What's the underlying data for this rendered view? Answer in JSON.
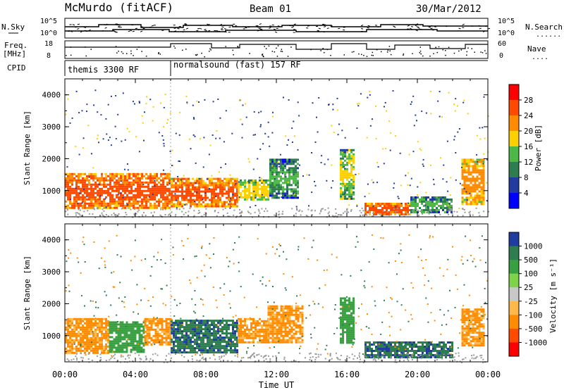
{
  "header": {
    "station": "McMurdo (fitACF)",
    "beam": "Beam 01",
    "date": "30/Mar/2012"
  },
  "top_panels": {
    "nsky_label": "N.Sky",
    "nsearch_label": "N.Search",
    "nsearch_dots": "......",
    "freq_label_line1": "Freq.",
    "freq_label_line2": "[MHz]",
    "nave_label": "Nave",
    "nave_dots": "....",
    "cpid_label": "CPID",
    "left_ticks_top": [
      "10^5",
      "10^0"
    ],
    "right_ticks_top": [
      "10^5",
      "10^0"
    ],
    "left_ticks_freq": [
      "18",
      "8"
    ],
    "right_ticks_nave": [
      "60",
      "0"
    ],
    "cpid_segments": [
      {
        "name": "themis 3300 RF",
        "start_hour": 0,
        "end_hour": 6
      },
      {
        "name": "normalsound (fast) 157 RF",
        "start_hour": 6,
        "end_hour": 24
      }
    ]
  },
  "colorbars": {
    "power": {
      "title": "Power [dB]",
      "ticks": [
        "28",
        "24",
        "20",
        "16",
        "12",
        "8",
        "4"
      ],
      "colors": [
        "#ff0000",
        "#ff4a00",
        "#ff8c00",
        "#ffd000",
        "#4db848",
        "#2e7d4f",
        "#1f3c9e",
        "#0000ff"
      ]
    },
    "velocity": {
      "title": "Velocity [m s⁻¹]",
      "ticks": [
        "1000",
        "500",
        "100",
        "25",
        "-25",
        "-100",
        "-500",
        "-1000"
      ],
      "colors": [
        "#1f3c9e",
        "#2e7d4f",
        "#38a040",
        "#7fd34b",
        "#c8c8c8",
        "#ffb84a",
        "#ff8c00",
        "#ff4a00",
        "#ff0000"
      ]
    }
  },
  "chart_data": [
    {
      "type": "heatmap",
      "title": "Power",
      "xlabel": "Time UT",
      "ylabel": "Slant Range [km]",
      "xlim": [
        0,
        24
      ],
      "ylim": [
        180,
        4500
      ],
      "x_ticks": [
        "00:00",
        "04:00",
        "08:00",
        "12:00",
        "16:00",
        "20:00",
        "00:00"
      ],
      "y_ticks": [
        "1000",
        "2000",
        "3000",
        "4000"
      ],
      "colorbar_label": "Power [dB]",
      "colorbar_ticks": [
        28,
        24,
        20,
        16,
        12,
        8,
        4
      ],
      "regions": [
        {
          "t0": 0.0,
          "t1": 6.0,
          "r0": 450,
          "r1": 1550,
          "value": 26
        },
        {
          "t0": 6.0,
          "t1": 9.8,
          "r0": 500,
          "r1": 1400,
          "value": 25
        },
        {
          "t0": 9.8,
          "t1": 11.6,
          "r0": 700,
          "r1": 1350,
          "value": 18
        },
        {
          "t0": 11.6,
          "t1": 13.2,
          "r0": 800,
          "r1": 2000,
          "value": 12
        },
        {
          "t0": 15.6,
          "t1": 16.4,
          "r0": 750,
          "r1": 2300,
          "value": 16
        },
        {
          "t0": 17.0,
          "t1": 19.6,
          "r0": 280,
          "r1": 620,
          "value": 26
        },
        {
          "t0": 19.6,
          "t1": 22.0,
          "r0": 330,
          "r1": 820,
          "value": 12
        },
        {
          "t0": 22.5,
          "t1": 23.8,
          "r0": 600,
          "r1": 2000,
          "value": 22
        }
      ]
    },
    {
      "type": "heatmap",
      "title": "Velocity",
      "xlabel": "Time UT",
      "ylabel": "Slant Range [km]",
      "xlim": [
        0,
        24
      ],
      "ylim": [
        180,
        4500
      ],
      "x_ticks": [
        "00:00",
        "04:00",
        "08:00",
        "12:00",
        "16:00",
        "20:00",
        "00:00"
      ],
      "y_ticks": [
        "1000",
        "2000",
        "3000",
        "4000"
      ],
      "colorbar_label": "Velocity [m s⁻¹]",
      "colorbar_ticks": [
        1000,
        500,
        100,
        25,
        -25,
        -100,
        -500,
        -1000
      ],
      "regions": [
        {
          "t0": 0.0,
          "t1": 2.5,
          "r0": 450,
          "r1": 1550,
          "value": -300
        },
        {
          "t0": 2.5,
          "t1": 4.5,
          "r0": 500,
          "r1": 1450,
          "value": 60
        },
        {
          "t0": 4.5,
          "t1": 6.0,
          "r0": 700,
          "r1": 1550,
          "value": -300
        },
        {
          "t0": 6.0,
          "t1": 9.8,
          "r0": 500,
          "r1": 1500,
          "value": 300
        },
        {
          "t0": 9.8,
          "t1": 11.5,
          "r0": 800,
          "r1": 1550,
          "value": -300
        },
        {
          "t0": 11.5,
          "t1": 13.5,
          "r0": 800,
          "r1": 1950,
          "value": -300
        },
        {
          "t0": 15.6,
          "t1": 16.4,
          "r0": 800,
          "r1": 2200,
          "value": 60
        },
        {
          "t0": 17.0,
          "t1": 22.0,
          "r0": 300,
          "r1": 820,
          "value": 300
        },
        {
          "t0": 22.5,
          "t1": 23.8,
          "r0": 700,
          "r1": 1850,
          "value": -300
        }
      ]
    }
  ]
}
